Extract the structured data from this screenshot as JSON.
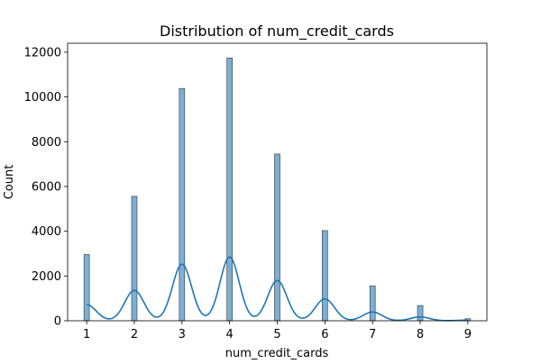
{
  "chart_data": {
    "type": "bar",
    "title": "Distribution of num_credit_cards",
    "xlabel": "num_credit_cards",
    "ylabel": "Count",
    "x_ticks": [
      1,
      2,
      3,
      4,
      5,
      6,
      7,
      8,
      9
    ],
    "y_ticks": [
      0,
      2000,
      4000,
      6000,
      8000,
      10000,
      12000
    ],
    "xlim": [
      0.6,
      9.4
    ],
    "ylim": [
      0,
      12400
    ],
    "grid": false,
    "legend": "none",
    "bar_color": "#5b9bc8",
    "kde_color": "#1f77b4",
    "bins": [
      {
        "x": 1,
        "count": 2960
      },
      {
        "x": 2,
        "count": 5560
      },
      {
        "x": 3,
        "count": 10380
      },
      {
        "x": 4,
        "count": 11740
      },
      {
        "x": 5,
        "count": 7450
      },
      {
        "x": 6,
        "count": 4030
      },
      {
        "x": 7,
        "count": 1560
      },
      {
        "x": 8,
        "count": 680
      },
      {
        "x": 9,
        "count": 90
      }
    ],
    "kde_peaks": [
      {
        "x": 1,
        "count": 720
      },
      {
        "x": 2,
        "count": 1360
      },
      {
        "x": 3,
        "count": 2530
      },
      {
        "x": 4,
        "count": 2850
      },
      {
        "x": 5,
        "count": 1800
      },
      {
        "x": 6,
        "count": 980
      },
      {
        "x": 7,
        "count": 390
      },
      {
        "x": 8,
        "count": 170
      },
      {
        "x": 9,
        "count": 30
      }
    ]
  }
}
